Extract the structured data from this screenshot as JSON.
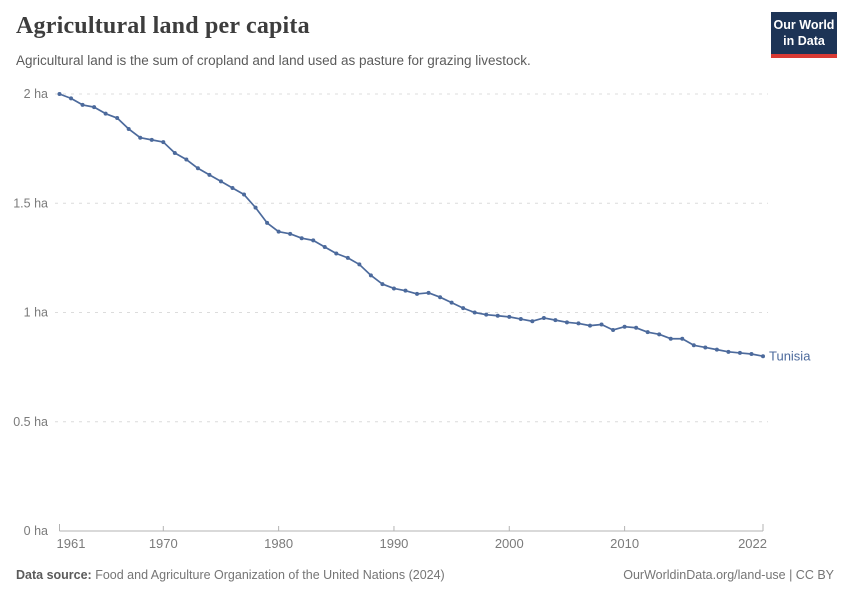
{
  "header": {
    "title": "Agricultural land per capita",
    "subtitle": "Agricultural land is the sum of cropland and land used as pasture for grazing livestock."
  },
  "logo": {
    "line1": "Our World",
    "line2": "in Data",
    "bg_color": "#1d3456",
    "accent_color": "#d93a34"
  },
  "chart_data": {
    "type": "line",
    "title": "Agricultural land per capita",
    "subtitle": "Agricultural land is the sum of cropland and land used as pasture for grazing livestock.",
    "unit": "ha",
    "xlabel": "",
    "ylabel": "Agricultural land per capita (ha)",
    "xlim": [
      1961,
      2022
    ],
    "ylim": [
      0,
      2
    ],
    "grid": "horizontal-dashed",
    "legend": "end-of-line-label",
    "line_color": "#4c6a9c",
    "grid_color": "#dcdcdc",
    "axis_color": "#b3b3b3",
    "tick_label_color": "#7b7b7b",
    "yticks": [
      {
        "value": 0,
        "label": "0 ha"
      },
      {
        "value": 0.5,
        "label": "0.5 ha"
      },
      {
        "value": 1,
        "label": "1 ha"
      },
      {
        "value": 1.5,
        "label": "1.5 ha"
      },
      {
        "value": 2,
        "label": "2 ha"
      }
    ],
    "xticks": [
      {
        "value": 1961,
        "label": "1961"
      },
      {
        "value": 1970,
        "label": "1970"
      },
      {
        "value": 1980,
        "label": "1980"
      },
      {
        "value": 1990,
        "label": "1990"
      },
      {
        "value": 2000,
        "label": "2000"
      },
      {
        "value": 2010,
        "label": "2010"
      },
      {
        "value": 2022,
        "label": "2022"
      }
    ],
    "x": [
      1961,
      1962,
      1963,
      1964,
      1965,
      1966,
      1967,
      1968,
      1969,
      1970,
      1971,
      1972,
      1973,
      1974,
      1975,
      1976,
      1977,
      1978,
      1979,
      1980,
      1981,
      1982,
      1983,
      1984,
      1985,
      1986,
      1987,
      1988,
      1989,
      1990,
      1991,
      1992,
      1993,
      1994,
      1995,
      1996,
      1997,
      1998,
      1999,
      2000,
      2001,
      2002,
      2003,
      2004,
      2005,
      2006,
      2007,
      2008,
      2009,
      2010,
      2011,
      2012,
      2013,
      2014,
      2015,
      2016,
      2017,
      2018,
      2019,
      2020,
      2021,
      2022
    ],
    "series": [
      {
        "name": "Tunisia",
        "color": "#4c6a9c",
        "values": [
          2.0,
          1.98,
          1.95,
          1.94,
          1.91,
          1.89,
          1.84,
          1.8,
          1.79,
          1.78,
          1.73,
          1.7,
          1.66,
          1.63,
          1.6,
          1.57,
          1.54,
          1.48,
          1.41,
          1.37,
          1.36,
          1.34,
          1.33,
          1.3,
          1.27,
          1.25,
          1.22,
          1.17,
          1.13,
          1.11,
          1.1,
          1.085,
          1.09,
          1.07,
          1.045,
          1.02,
          1.0,
          0.99,
          0.985,
          0.98,
          0.97,
          0.96,
          0.975,
          0.965,
          0.955,
          0.95,
          0.94,
          0.945,
          0.92,
          0.935,
          0.93,
          0.91,
          0.9,
          0.88,
          0.88,
          0.85,
          0.84,
          0.83,
          0.82,
          0.815,
          0.81,
          0.8
        ]
      }
    ]
  },
  "footer": {
    "source_label": "Data source:",
    "source_text": " Food and Agriculture Organization of the United Nations (2024)",
    "right_text": "OurWorldinData.org/land-use | CC BY"
  }
}
